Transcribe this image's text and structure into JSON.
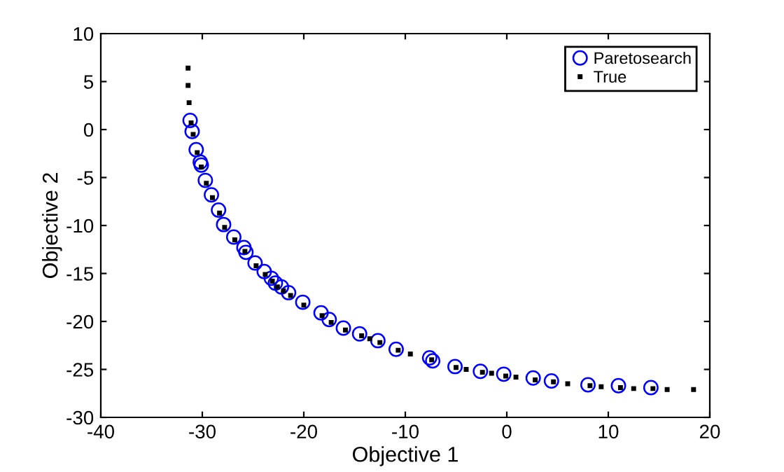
{
  "chart_data": {
    "type": "scatter",
    "xlabel": "Objective 1",
    "ylabel": "Objective 2",
    "xlim": [
      -40,
      20
    ],
    "ylim": [
      -30,
      10
    ],
    "xticks": [
      -40,
      -30,
      -20,
      -10,
      0,
      10,
      20
    ],
    "yticks": [
      -30,
      -25,
      -20,
      -15,
      -10,
      -5,
      0,
      5,
      10
    ],
    "grid": false,
    "legend": "top right",
    "series": [
      {
        "name": "Paretosearch",
        "color": "#0000ff",
        "marker": "circle",
        "x": [
          -31.2,
          -31.0,
          -30.6,
          -30.2,
          -30.1,
          -29.7,
          -29.1,
          -28.4,
          -27.9,
          -26.9,
          -25.9,
          -25.7,
          -24.8,
          -23.9,
          -23.2,
          -22.8,
          -22.2,
          -21.5,
          -20.1,
          -18.3,
          -17.5,
          -16.1,
          -14.5,
          -12.7,
          -10.9,
          -7.6,
          -7.3,
          -5.1,
          -2.6,
          -0.3,
          2.6,
          4.4,
          8.0,
          11.0,
          14.2
        ],
        "values": [
          0.95,
          -0.2,
          -2.1,
          -3.4,
          -3.7,
          -5.3,
          -6.8,
          -8.4,
          -9.9,
          -11.2,
          -12.3,
          -12.8,
          -13.9,
          -14.8,
          -15.5,
          -16.0,
          -16.4,
          -17.0,
          -18.0,
          -19.1,
          -19.8,
          -20.7,
          -21.3,
          -22.0,
          -22.9,
          -23.8,
          -24.1,
          -24.7,
          -25.2,
          -25.5,
          -25.9,
          -26.2,
          -26.6,
          -26.7,
          -26.9
        ]
      },
      {
        "name": "True",
        "color": "#000000",
        "marker": "square",
        "x": [
          -31.4,
          -31.4,
          -31.3,
          -31.1,
          -30.9,
          -30.5,
          -30.1,
          -29.6,
          -29.0,
          -28.3,
          -27.8,
          -26.8,
          -25.8,
          -24.7,
          -23.8,
          -23.1,
          -22.6,
          -22.0,
          -21.3,
          -20.0,
          -18.2,
          -17.3,
          -15.9,
          -14.3,
          -13.5,
          -12.5,
          -10.7,
          -9.5,
          -7.4,
          -5.0,
          -4.0,
          -2.4,
          -1.5,
          -0.1,
          0.9,
          2.8,
          4.6,
          6.0,
          8.2,
          9.3,
          11.2,
          12.5,
          14.4,
          15.8,
          18.4
        ],
        "values": [
          6.4,
          4.6,
          2.8,
          0.7,
          -0.5,
          -2.4,
          -3.9,
          -5.6,
          -7.1,
          -8.7,
          -10.2,
          -11.5,
          -12.7,
          -14.2,
          -15.1,
          -15.8,
          -16.4,
          -16.8,
          -17.3,
          -18.3,
          -19.4,
          -20.1,
          -20.9,
          -21.5,
          -21.8,
          -22.2,
          -23.0,
          -23.4,
          -24.0,
          -24.8,
          -25.0,
          -25.3,
          -25.4,
          -25.7,
          -25.8,
          -26.1,
          -26.3,
          -26.5,
          -26.7,
          -26.8,
          -26.9,
          -27.0,
          -27.0,
          -27.1,
          -27.1
        ]
      }
    ]
  }
}
